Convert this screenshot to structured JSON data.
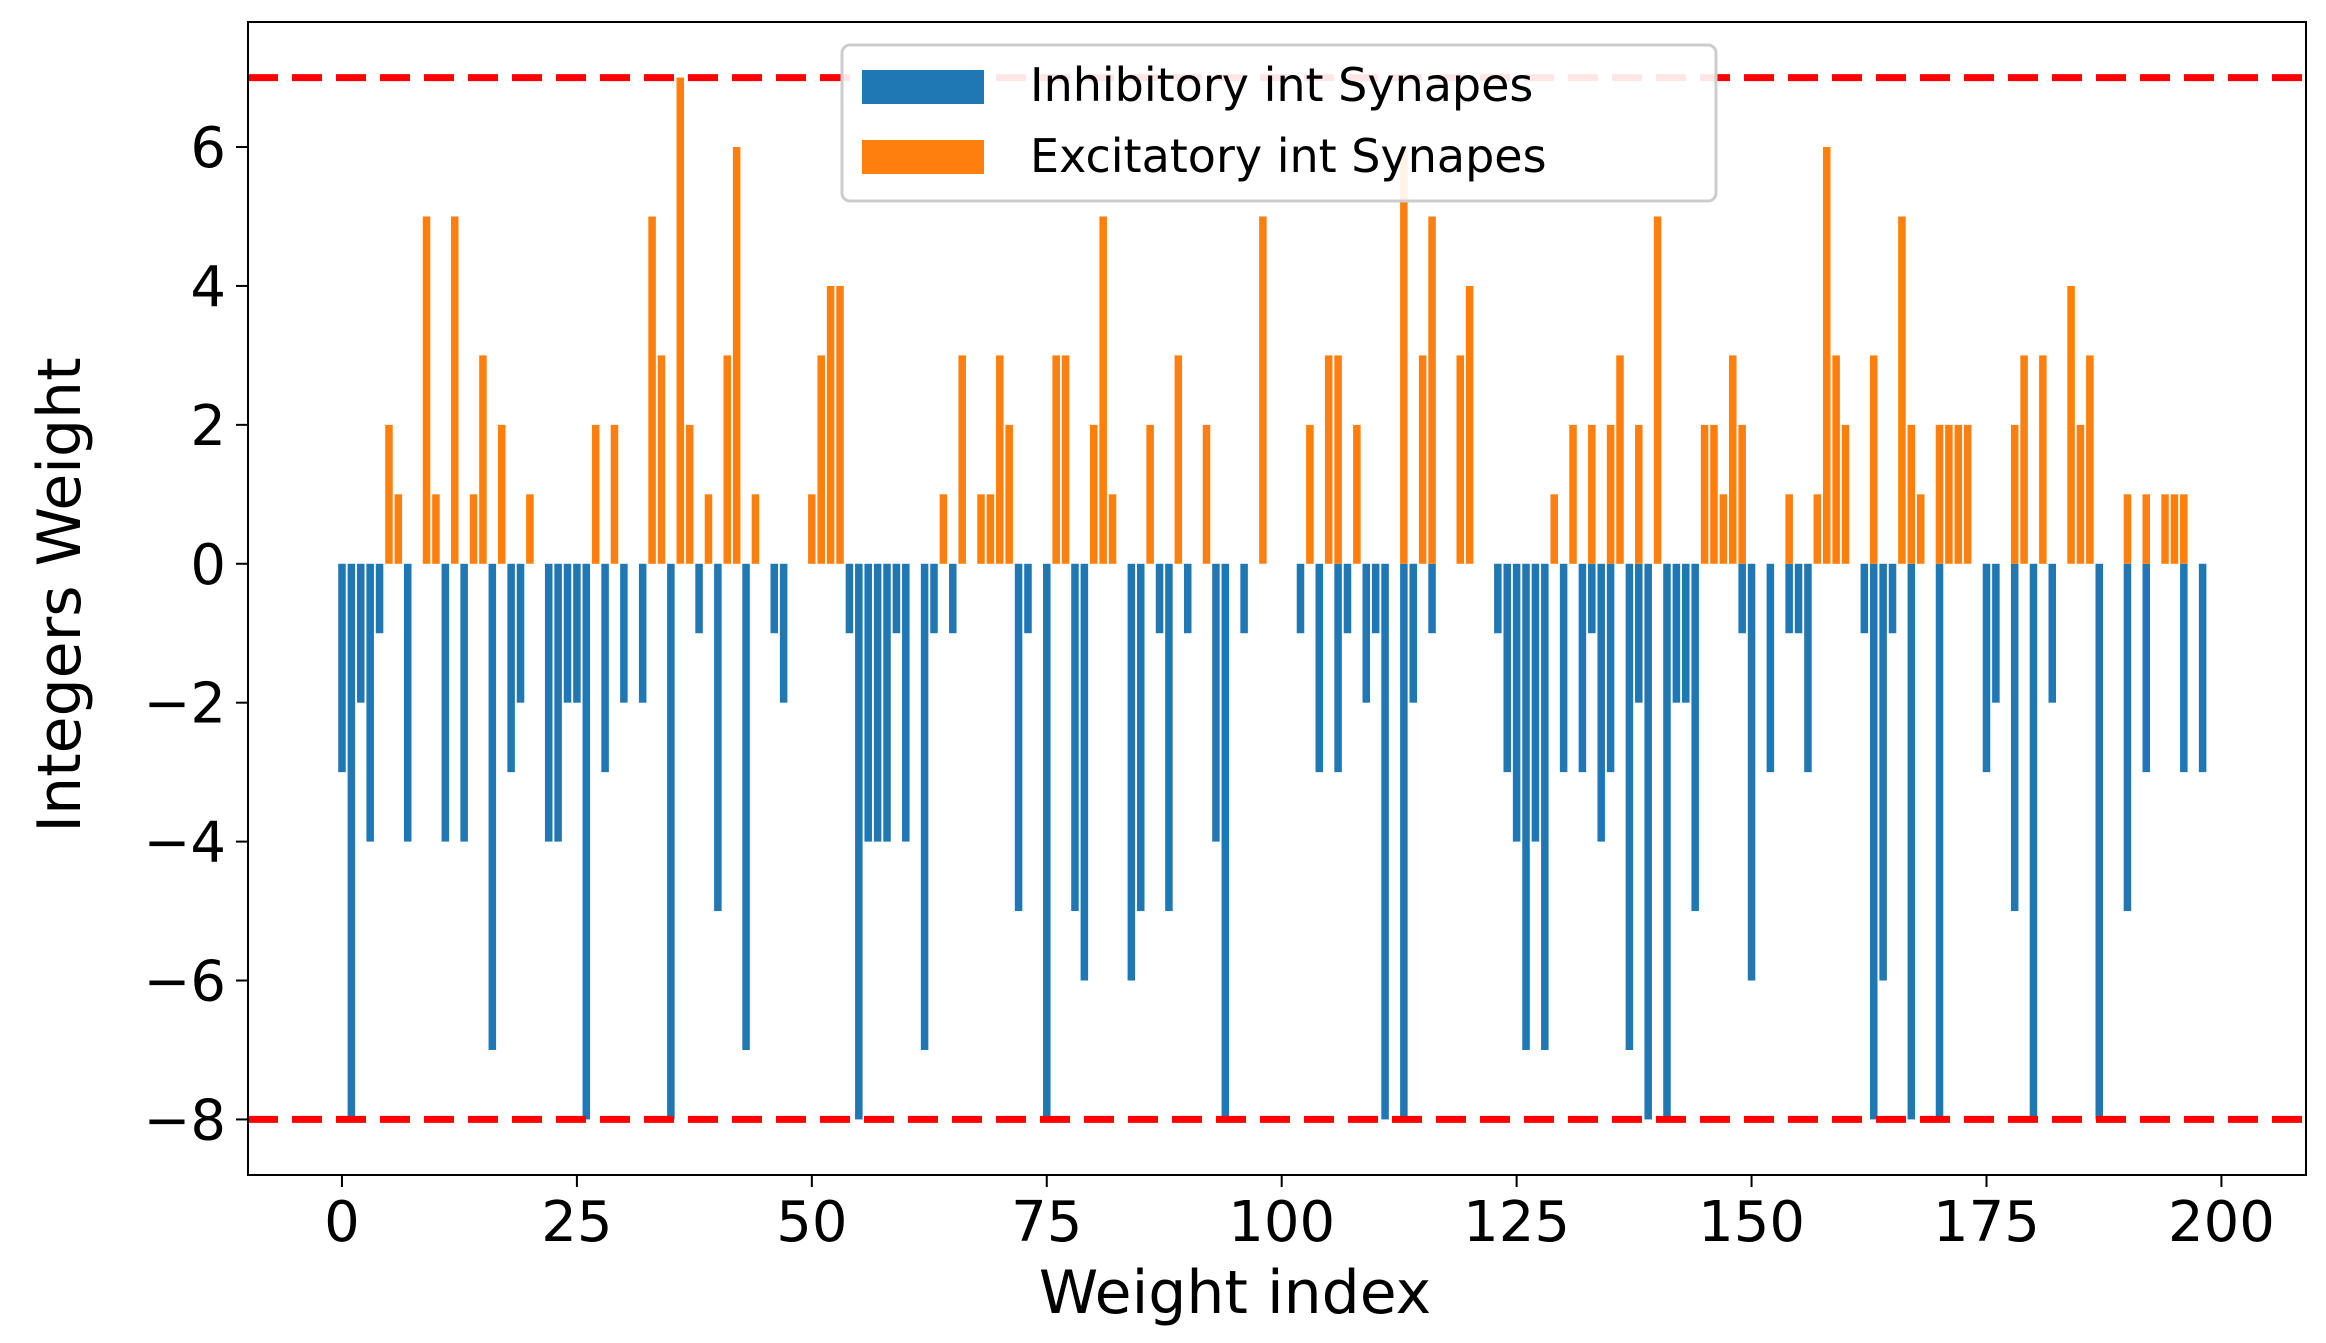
{
  "chart_data": {
    "type": "bar",
    "xlabel": "Weight index",
    "ylabel": "Integers Weight",
    "xlim": [
      -10,
      209
    ],
    "ylim": [
      -8.8,
      7.8
    ],
    "xticks": [
      0,
      25,
      50,
      75,
      100,
      125,
      150,
      175,
      200
    ],
    "xtick_labels": [
      "0",
      "25",
      "50",
      "75",
      "100",
      "125",
      "150",
      "175",
      "200"
    ],
    "yticks": [
      -8,
      -6,
      -4,
      -2,
      0,
      2,
      4,
      6
    ],
    "ytick_labels": [
      "−8",
      "−6",
      "−4",
      "−2",
      "0",
      "2",
      "4",
      "6"
    ],
    "reference_lines": [
      {
        "y": 7,
        "color": "#ff0000",
        "style": "dashed"
      },
      {
        "y": -8,
        "color": "#ff0000",
        "style": "dashed"
      }
    ],
    "legend": {
      "placement": "top-center",
      "entries": [
        {
          "label": "Inhibitory int Synapes",
          "color": "#1f77b4"
        },
        {
          "label": "Excitatory int Synapes",
          "color": "#ff7f0e"
        }
      ]
    },
    "series": [
      {
        "name": "Inhibitory int Synapes",
        "color": "#1f77b4",
        "points": [
          [
            0,
            -3
          ],
          [
            1,
            -8
          ],
          [
            2,
            -2
          ],
          [
            3,
            -4
          ],
          [
            4,
            -1
          ],
          [
            7,
            -4
          ],
          [
            11,
            -4
          ],
          [
            13,
            -4
          ],
          [
            16,
            -7
          ],
          [
            18,
            -3
          ],
          [
            19,
            -2
          ],
          [
            22,
            -4
          ],
          [
            23,
            -4
          ],
          [
            24,
            -2
          ],
          [
            25,
            -2
          ],
          [
            26,
            -8
          ],
          [
            28,
            -3
          ],
          [
            30,
            -2
          ],
          [
            32,
            -2
          ],
          [
            35,
            -8
          ],
          [
            38,
            -1
          ],
          [
            40,
            -5
          ],
          [
            43,
            -7
          ],
          [
            46,
            -1
          ],
          [
            47,
            -2
          ],
          [
            54,
            -1
          ],
          [
            55,
            -8
          ],
          [
            56,
            -4
          ],
          [
            57,
            -4
          ],
          [
            58,
            -4
          ],
          [
            59,
            -1
          ],
          [
            60,
            -4
          ],
          [
            62,
            -7
          ],
          [
            63,
            -1
          ],
          [
            65,
            -1
          ],
          [
            72,
            -5
          ],
          [
            73,
            -1
          ],
          [
            75,
            -8
          ],
          [
            78,
            -5
          ],
          [
            79,
            -6
          ],
          [
            84,
            -6
          ],
          [
            85,
            -5
          ],
          [
            87,
            -1
          ],
          [
            88,
            -5
          ],
          [
            90,
            -1
          ],
          [
            93,
            -4
          ],
          [
            94,
            -8
          ],
          [
            96,
            -1
          ],
          [
            102,
            -1
          ],
          [
            104,
            -3
          ],
          [
            106,
            -3
          ],
          [
            107,
            -1
          ],
          [
            109,
            -2
          ],
          [
            110,
            -1
          ],
          [
            111,
            -8
          ],
          [
            113,
            -8
          ],
          [
            114,
            -2
          ],
          [
            116,
            -1
          ],
          [
            123,
            -1
          ],
          [
            124,
            -3
          ],
          [
            125,
            -4
          ],
          [
            126,
            -7
          ],
          [
            127,
            -4
          ],
          [
            128,
            -7
          ],
          [
            130,
            -3
          ],
          [
            132,
            -3
          ],
          [
            133,
            -1
          ],
          [
            134,
            -4
          ],
          [
            135,
            -3
          ],
          [
            137,
            -7
          ],
          [
            138,
            -2
          ],
          [
            139,
            -8
          ],
          [
            141,
            -8
          ],
          [
            142,
            -2
          ],
          [
            143,
            -2
          ],
          [
            144,
            -5
          ],
          [
            149,
            -1
          ],
          [
            150,
            -6
          ],
          [
            152,
            -3
          ],
          [
            154,
            -1
          ],
          [
            155,
            -1
          ],
          [
            156,
            -3
          ],
          [
            162,
            -1
          ],
          [
            163,
            -8
          ],
          [
            164,
            -6
          ],
          [
            165,
            -1
          ],
          [
            167,
            -8
          ],
          [
            170,
            -8
          ],
          [
            175,
            -3
          ],
          [
            176,
            -2
          ],
          [
            178,
            -5
          ],
          [
            180,
            -8
          ],
          [
            182,
            -2
          ],
          [
            187,
            -8
          ],
          [
            190,
            -5
          ],
          [
            192,
            -3
          ],
          [
            196,
            -3
          ],
          [
            198,
            -3
          ]
        ]
      },
      {
        "name": "Excitatory int Synapes",
        "color": "#ff7f0e",
        "points": [
          [
            5,
            2
          ],
          [
            6,
            1
          ],
          [
            9,
            5
          ],
          [
            10,
            1
          ],
          [
            12,
            5
          ],
          [
            14,
            1
          ],
          [
            15,
            3
          ],
          [
            17,
            2
          ],
          [
            20,
            1
          ],
          [
            27,
            2
          ],
          [
            29,
            2
          ],
          [
            33,
            5
          ],
          [
            34,
            3
          ],
          [
            36,
            7
          ],
          [
            37,
            2
          ],
          [
            39,
            1
          ],
          [
            41,
            3
          ],
          [
            42,
            6
          ],
          [
            44,
            1
          ],
          [
            50,
            1
          ],
          [
            51,
            3
          ],
          [
            52,
            4
          ],
          [
            53,
            4
          ],
          [
            64,
            1
          ],
          [
            66,
            3
          ],
          [
            68,
            1
          ],
          [
            69,
            1
          ],
          [
            70,
            3
          ],
          [
            71,
            2
          ],
          [
            76,
            3
          ],
          [
            77,
            3
          ],
          [
            80,
            2
          ],
          [
            81,
            5
          ],
          [
            82,
            1
          ],
          [
            86,
            2
          ],
          [
            89,
            3
          ],
          [
            92,
            2
          ],
          [
            98,
            5
          ],
          [
            103,
            2
          ],
          [
            105,
            3
          ],
          [
            106,
            3
          ],
          [
            108,
            2
          ],
          [
            113,
            6
          ],
          [
            115,
            3
          ],
          [
            116,
            5
          ],
          [
            119,
            3
          ],
          [
            120,
            4
          ],
          [
            129,
            1
          ],
          [
            131,
            2
          ],
          [
            133,
            2
          ],
          [
            135,
            2
          ],
          [
            136,
            3
          ],
          [
            138,
            2
          ],
          [
            140,
            5
          ],
          [
            145,
            2
          ],
          [
            146,
            2
          ],
          [
            147,
            1
          ],
          [
            148,
            3
          ],
          [
            149,
            2
          ],
          [
            154,
            1
          ],
          [
            157,
            1
          ],
          [
            158,
            6
          ],
          [
            159,
            3
          ],
          [
            160,
            2
          ],
          [
            163,
            3
          ],
          [
            166,
            5
          ],
          [
            167,
            2
          ],
          [
            168,
            1
          ],
          [
            170,
            2
          ],
          [
            171,
            2
          ],
          [
            172,
            2
          ],
          [
            173,
            2
          ],
          [
            178,
            2
          ],
          [
            179,
            3
          ],
          [
            181,
            3
          ],
          [
            184,
            4
          ],
          [
            185,
            2
          ],
          [
            186,
            3
          ],
          [
            190,
            1
          ],
          [
            192,
            1
          ],
          [
            194,
            1
          ],
          [
            195,
            1
          ],
          [
            196,
            1
          ]
        ]
      }
    ]
  }
}
